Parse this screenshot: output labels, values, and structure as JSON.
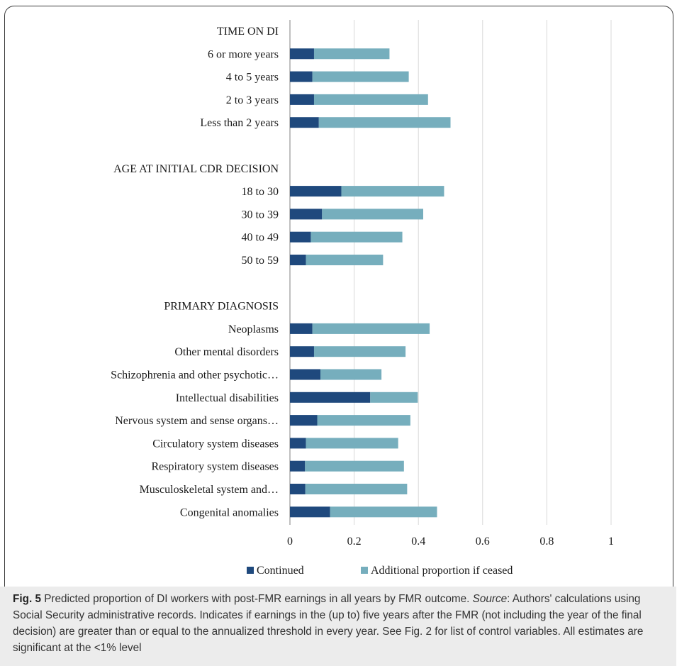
{
  "chart_data": {
    "type": "bar",
    "orientation": "horizontal",
    "stacked": true,
    "categories": [
      "TIME ON DI",
      "6 or more years",
      "4 to 5 years",
      "2 to 3 years",
      "Less than 2 years",
      "",
      "AGE AT INITIAL CDR DECISION",
      "18 to 30",
      "30 to 39",
      "40 to 49",
      "50 to 59",
      "",
      "PRIMARY DIAGNOSIS",
      "Neoplasms",
      "Other mental disorders",
      "Schizophrenia and other psychotic…",
      "Intellectual disabilities",
      "Nervous system and sense organs…",
      "Circulatory system diseases",
      "Respiratory system diseases",
      "Musculoskeletal system and…",
      "Congenital anomalies"
    ],
    "series": [
      {
        "name": "Continued",
        "color": "#1f497d",
        "values": [
          null,
          0.075,
          0.07,
          0.075,
          0.09,
          null,
          null,
          0.16,
          0.1,
          0.065,
          0.05,
          null,
          null,
          0.07,
          0.075,
          0.095,
          0.25,
          0.085,
          0.05,
          0.047,
          0.048,
          0.125
        ]
      },
      {
        "name": "Additional proportion if ceased",
        "color": "#76aebd",
        "values": [
          null,
          0.235,
          0.3,
          0.355,
          0.41,
          null,
          null,
          0.32,
          0.315,
          0.285,
          0.24,
          null,
          null,
          0.365,
          0.285,
          0.19,
          0.148,
          0.29,
          0.287,
          0.308,
          0.317,
          0.333
        ]
      }
    ],
    "xlim": [
      0,
      1
    ],
    "xticks": [
      "0",
      "0.2",
      "0.4",
      "0.6",
      "0.8",
      "1"
    ],
    "grid": true,
    "legend_position": "bottom"
  },
  "caption": {
    "fig_label": "Fig. 5",
    "part1": " Predicted proportion of DI workers with post-FMR earnings in all years by FMR outcome. ",
    "source_label": "Source",
    "part2": ": Authors' calculations using Social Security administrative records. Indicates if earnings in the (up to) five years after the FMR (not including the year of the final decision) are greater than or equal to the annualized threshold in every year. See Fig. 2 for list of control variables. All estimates are significant at the <1% level"
  }
}
